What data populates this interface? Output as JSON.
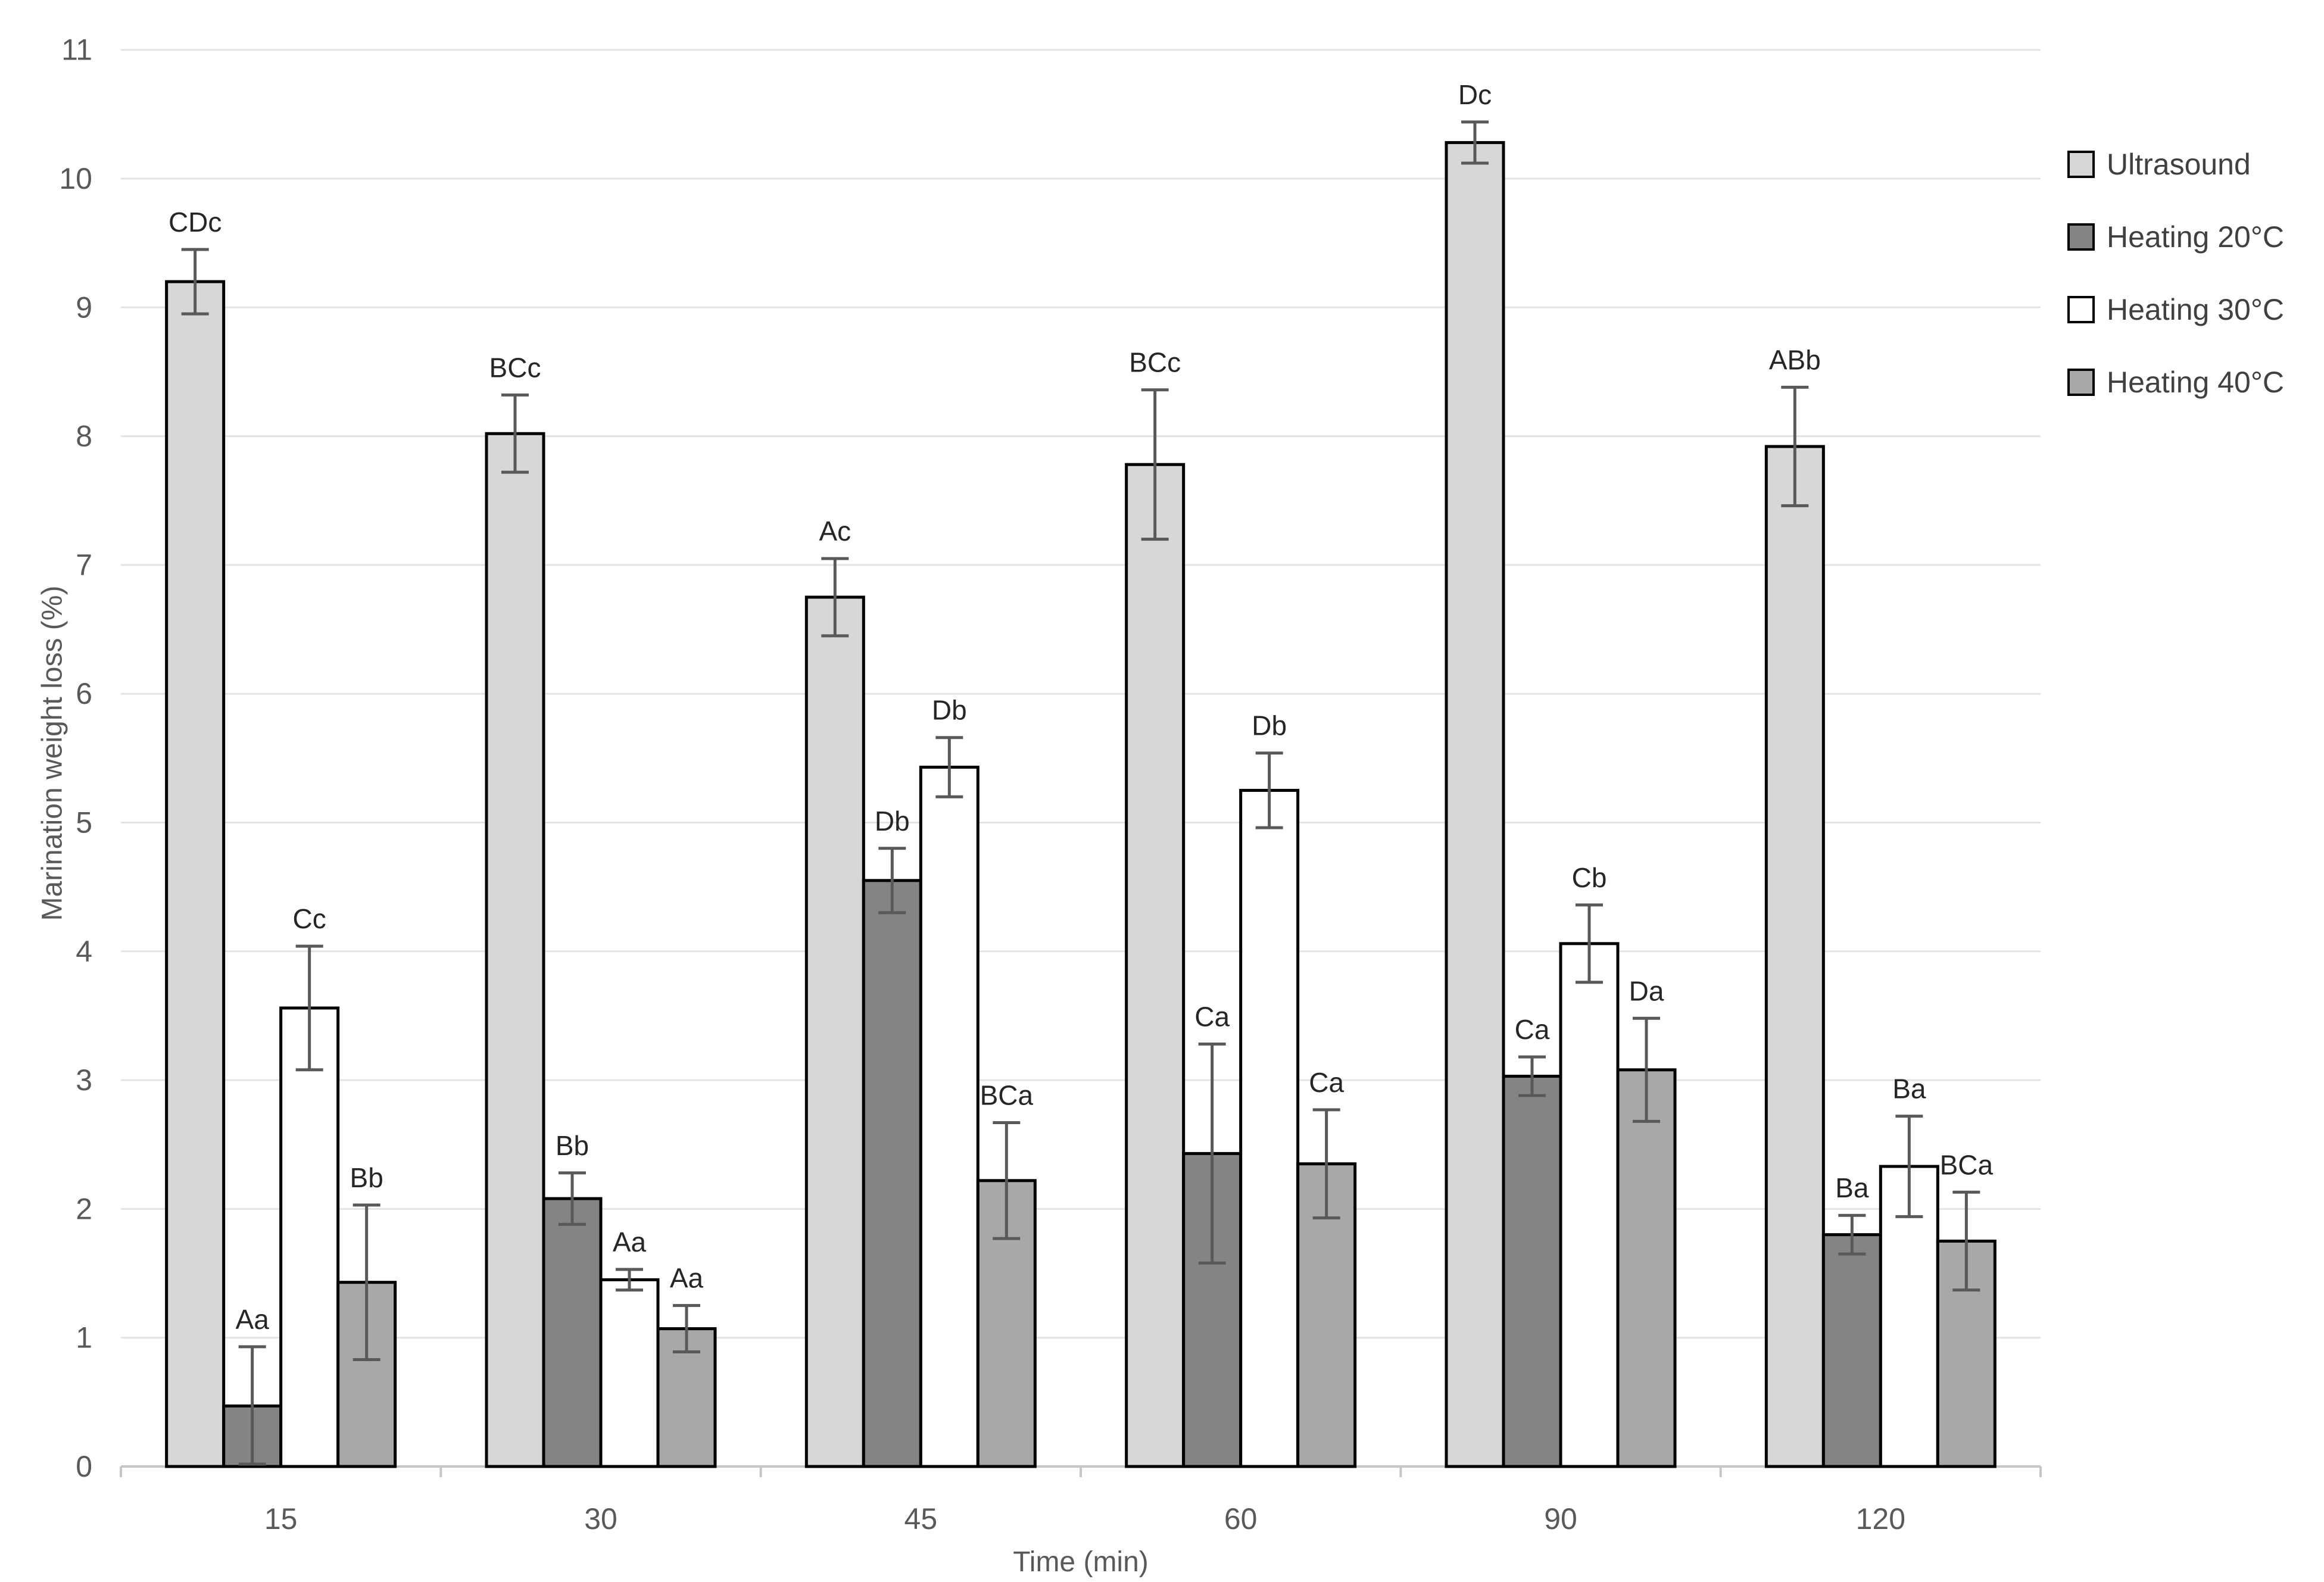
{
  "chart_data": {
    "type": "bar",
    "title": "",
    "xlabel": "Time (min)",
    "ylabel": "Marination weight loss (%)",
    "ylim": [
      0,
      11
    ],
    "ytick_step": 1,
    "y_ticks": [
      0,
      1,
      2,
      3,
      4,
      5,
      6,
      7,
      8,
      9,
      10,
      11
    ],
    "categories": [
      "15",
      "30",
      "45",
      "60",
      "90",
      "120"
    ],
    "grid": true,
    "legend_position": "right",
    "error_bars": true,
    "bar_outline_color": "#000000",
    "error_bar_color": "#595959",
    "grid_color": "#e3e3e3",
    "axis_color": "#c6c6c6",
    "tick_text_color": "#595959",
    "label_text_color": "#262626",
    "series": [
      {
        "name": "Ultrasound",
        "color": "#d7d7d7",
        "values": [
          9.2,
          8.02,
          6.75,
          7.78,
          10.28,
          7.92
        ],
        "errors": [
          0.25,
          0.3,
          0.3,
          0.58,
          0.16,
          0.46
        ],
        "labels": [
          "CDc",
          "BCc",
          "Ac",
          "BCc",
          "Dc",
          "ABb"
        ]
      },
      {
        "name": "Heating 20°C",
        "color": "#848484",
        "values": [
          0.47,
          2.08,
          4.55,
          2.43,
          3.03,
          1.8
        ],
        "errors": [
          0.46,
          0.2,
          0.25,
          0.85,
          0.15,
          0.15
        ],
        "labels": [
          "Aa",
          "Bb",
          "Db",
          "Ca",
          "Ca",
          "Ba"
        ]
      },
      {
        "name": "Heating 30°C",
        "color": "#ffffff",
        "values": [
          3.56,
          1.45,
          5.43,
          5.25,
          4.06,
          2.33
        ],
        "errors": [
          0.48,
          0.08,
          0.23,
          0.29,
          0.3,
          0.39
        ],
        "labels": [
          "Cc",
          "Aa",
          "Db",
          "Db",
          "Cb",
          "Ba"
        ]
      },
      {
        "name": "Heating 40°C",
        "color": "#a8a8a8",
        "values": [
          1.43,
          1.07,
          2.22,
          2.35,
          3.08,
          1.75
        ],
        "errors": [
          0.6,
          0.18,
          0.45,
          0.42,
          0.4,
          0.38
        ],
        "labels": [
          "Bb",
          "Aa",
          "BCa",
          "Ca",
          "Da",
          "BCa"
        ]
      }
    ]
  }
}
